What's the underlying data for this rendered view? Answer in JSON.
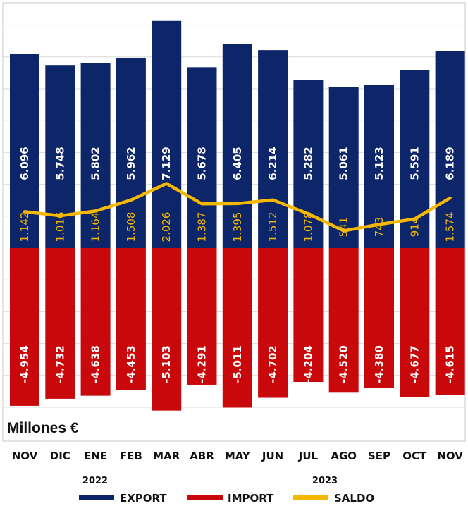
{
  "chart_data": {
    "type": "bar",
    "unit_label": "Millones €",
    "categories": [
      "NOV",
      "DIC",
      "ENE",
      "FEB",
      "MAR",
      "ABR",
      "MAY",
      "JUN",
      "JUL",
      "AGO",
      "SEP",
      "OCT",
      "NOV"
    ],
    "years": [
      {
        "label": "2022",
        "from_index": 0,
        "to_index": 1
      },
      {
        "label": "2023",
        "from_index": 2,
        "to_index": 12
      }
    ],
    "series": [
      {
        "name": "EXPORT",
        "type": "bar",
        "color": "#0d2569",
        "values": [
          6096,
          5748,
          5802,
          5962,
          7129,
          5678,
          6405,
          6214,
          5282,
          5061,
          5123,
          5591,
          6189
        ],
        "labels": [
          "6.096",
          "5.748",
          "5.802",
          "5.962",
          "7.129",
          "5.678",
          "6.405",
          "6.214",
          "5.282",
          "5.061",
          "5.123",
          "5.591",
          "6.189"
        ]
      },
      {
        "name": "IMPORT",
        "type": "bar",
        "color": "#c9080c",
        "values": [
          -4954,
          -4732,
          -4638,
          -4453,
          -5103,
          -4291,
          -5011,
          -4702,
          -4204,
          -4520,
          -4380,
          -4677,
          -4615
        ],
        "labels": [
          "-4.954",
          "-4.732",
          "-4.638",
          "-4.453",
          "-5.103",
          "-4.291",
          "-5.011",
          "-4.702",
          "-4.204",
          "-4.520",
          "-4.380",
          "-4.677",
          "-4.615"
        ]
      },
      {
        "name": "SALDO",
        "type": "line",
        "color": "#f5b800",
        "values": [
          1142,
          1016,
          1164,
          1508,
          2026,
          1387,
          1395,
          1512,
          1078,
          541,
          743,
          914,
          1574
        ],
        "labels": [
          "1.142",
          "1.016",
          "1.164",
          "1.508",
          "2.026",
          "1.387",
          "1.395",
          "1.512",
          "1.078",
          "541",
          "743",
          "914",
          "1.574"
        ]
      }
    ],
    "ylim": [
      -5300,
      7300
    ],
    "grid": true,
    "legend_position": "bottom"
  }
}
